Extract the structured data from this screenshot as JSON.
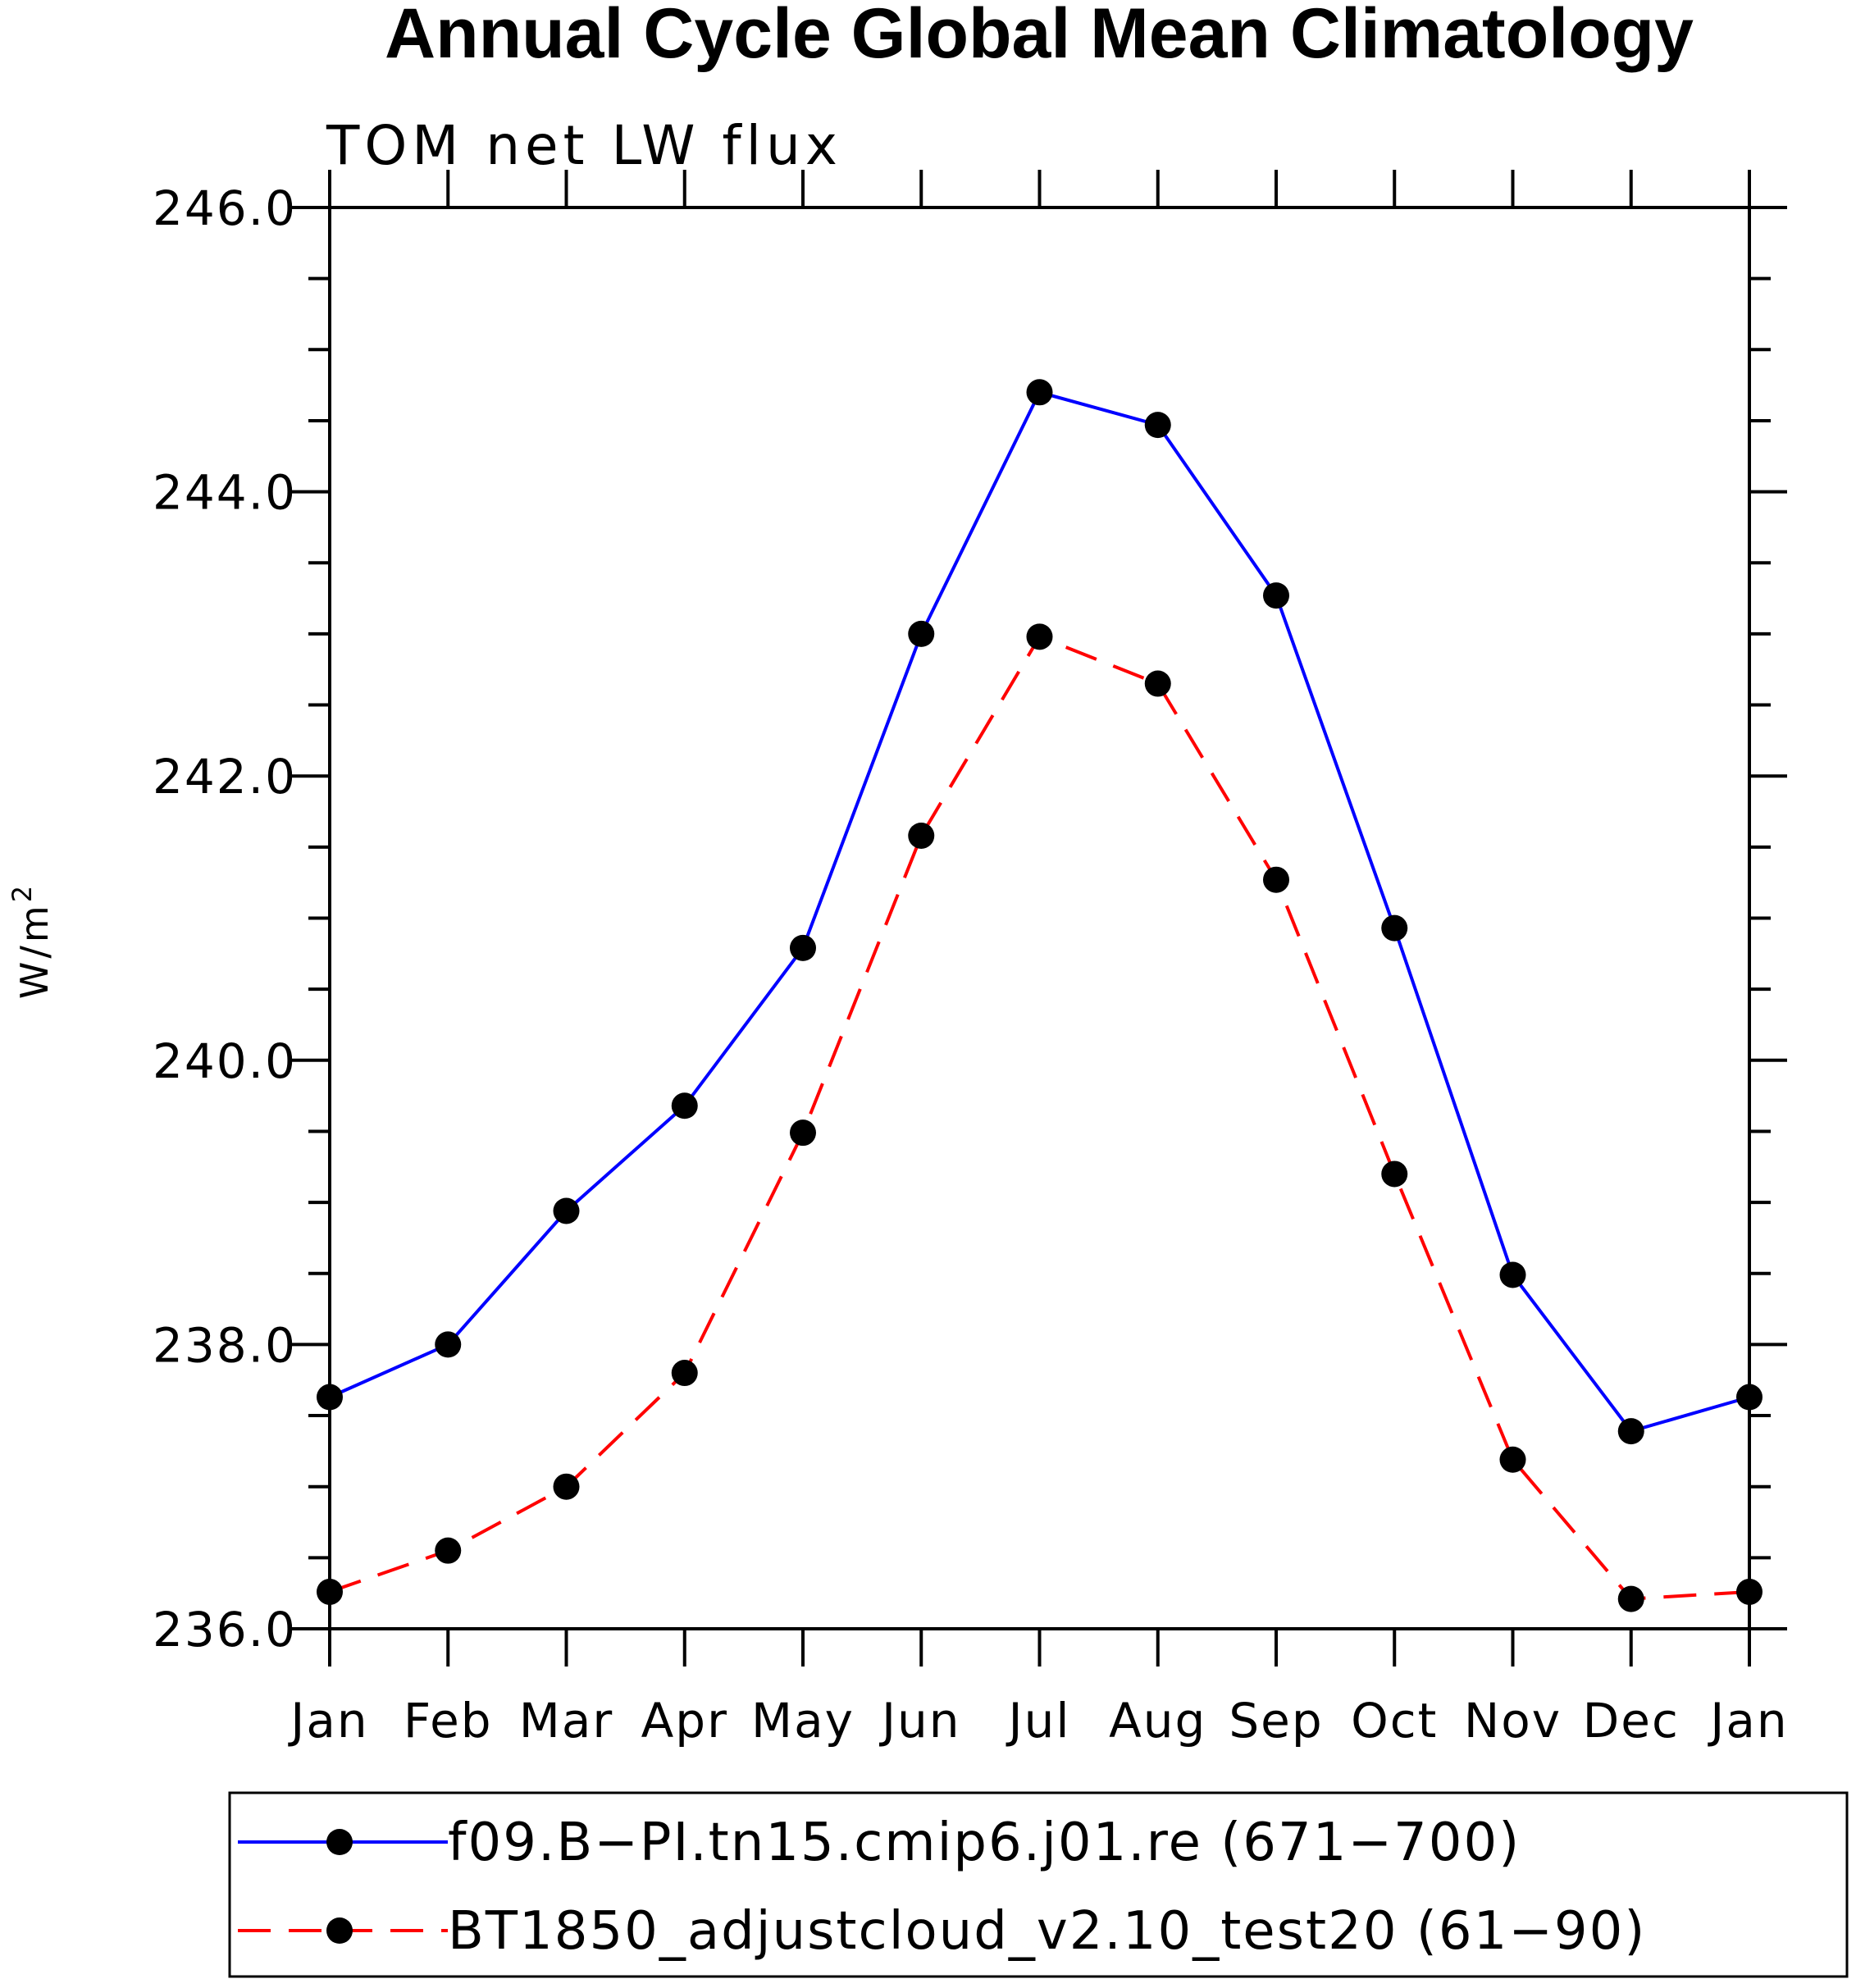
{
  "chart_data": {
    "type": "line",
    "title": "Annual Cycle Global Mean Climatology",
    "subtitle": "TOM net LW flux",
    "ylabel": "W/m",
    "ylabel_superscript": "2",
    "categories": [
      "Jan",
      "Feb",
      "Mar",
      "Apr",
      "May",
      "Jun",
      "Jul",
      "Aug",
      "Sep",
      "Oct",
      "Nov",
      "Dec",
      "Jan"
    ],
    "ylim": [
      236.0,
      246.0
    ],
    "yticks": [
      "236.0",
      "238.0",
      "240.0",
      "242.0",
      "244.0",
      "246.0"
    ],
    "series": [
      {
        "name": "f09.B−PI.tn15.cmip6.j01.re (671−700)",
        "color": "#0000ff",
        "style": "solid",
        "values": [
          237.63,
          238.0,
          238.94,
          239.68,
          240.79,
          243.0,
          244.7,
          244.47,
          243.27,
          240.93,
          238.49,
          237.39,
          237.63
        ]
      },
      {
        "name": "BT1850_adjustcloud_v2.10_test20 (61−90)",
        "color": "#ff0000",
        "style": "dashed",
        "values": [
          236.26,
          236.55,
          237.0,
          237.8,
          239.49,
          241.58,
          242.98,
          242.65,
          241.27,
          239.2,
          237.19,
          236.21,
          236.26
        ]
      }
    ],
    "marker_color": "#000000",
    "grid": false,
    "legend_position": "bottom"
  }
}
